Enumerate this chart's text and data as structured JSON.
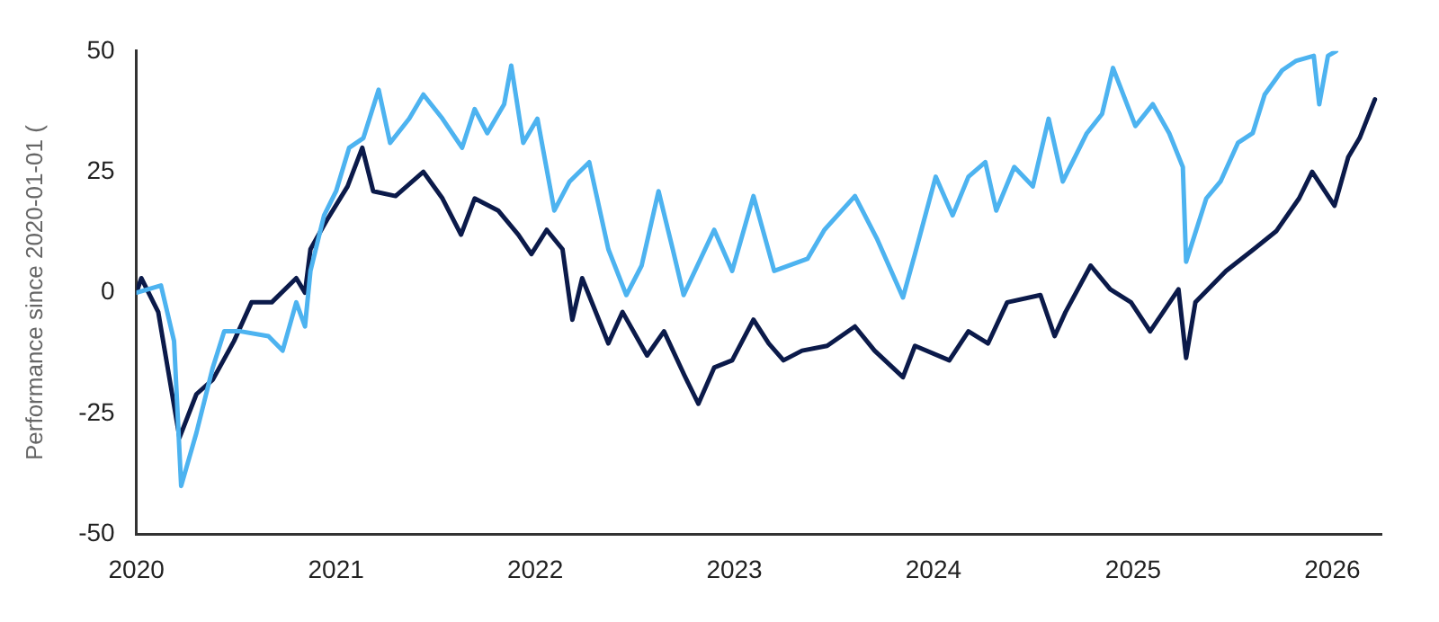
{
  "chart_data": {
    "type": "line",
    "ylabel": "Performance since 2020-01-01 (",
    "xlim": [
      "2020-01-01",
      "2026-04-01"
    ],
    "xticks": [
      "2020",
      "2021",
      "2022",
      "2023",
      "2024",
      "2025",
      "2026"
    ],
    "ylim": [
      -50,
      50
    ],
    "yticks": [
      -50,
      -25,
      0,
      25,
      50
    ],
    "grid": false,
    "legend": false,
    "marker": "none",
    "line_style": "solid",
    "series": [
      {
        "color": "#4db3f0",
        "x": [
          "2020-01-01",
          "2020-02-15",
          "2020-03-10",
          "2020-03-23",
          "2020-04-20",
          "2020-05-20",
          "2020-06-10",
          "2020-07-10",
          "2020-08-30",
          "2020-09-25",
          "2020-10-20",
          "2020-11-05",
          "2020-11-15",
          "2020-12-10",
          "2021-01-01",
          "2021-01-25",
          "2021-02-20",
          "2021-03-20",
          "2021-04-10",
          "2021-05-15",
          "2021-06-10",
          "2021-07-15",
          "2021-08-20",
          "2021-09-12",
          "2021-10-05",
          "2021-11-05",
          "2021-11-18",
          "2021-12-10",
          "2022-01-05",
          "2022-02-05",
          "2022-03-05",
          "2022-04-10",
          "2022-05-15",
          "2022-06-17",
          "2022-07-15",
          "2022-08-15",
          "2022-09-10",
          "2022-09-30",
          "2022-11-25",
          "2022-12-28",
          "2023-02-05",
          "2023-03-15",
          "2023-05-15",
          "2023-06-15",
          "2023-08-10",
          "2023-09-20",
          "2023-11-06",
          "2023-11-28",
          "2024-01-05",
          "2024-02-05",
          "2024-03-05",
          "2024-04-05",
          "2024-04-25",
          "2024-05-28",
          "2024-07-01",
          "2024-07-30",
          "2024-08-25",
          "2024-10-08",
          "2024-11-05",
          "2024-11-25",
          "2025-01-05",
          "2025-02-06",
          "2025-03-08",
          "2025-04-02",
          "2025-04-08",
          "2025-05-15",
          "2025-06-10",
          "2025-07-12",
          "2025-08-08",
          "2025-08-30",
          "2025-10-01",
          "2025-10-27",
          "2025-11-28",
          "2025-12-08",
          "2025-12-24",
          "2026-01-08"
        ],
        "values": [
          0,
          1.5,
          -10,
          -40,
          -29,
          -15.5,
          -8,
          -8,
          -9,
          -12,
          -2,
          -7,
          4.5,
          16,
          21,
          30,
          32,
          42,
          31,
          36,
          41,
          36,
          30,
          38,
          33,
          39,
          47,
          31,
          36,
          17,
          23,
          27,
          9,
          -0.5,
          5.6,
          21,
          9,
          -0.5,
          13,
          4.5,
          20,
          4.5,
          7,
          13,
          20,
          11,
          -1,
          8,
          24,
          16,
          24,
          27,
          17,
          26,
          22,
          36,
          23,
          33,
          37,
          46.5,
          34.5,
          39,
          33,
          26,
          6.4,
          19.5,
          23,
          31,
          33,
          41,
          46,
          48,
          49,
          39,
          49,
          50
        ]
      },
      {
        "color": "#0b1a4a",
        "x": [
          "2020-01-01",
          "2020-01-10",
          "2020-02-10",
          "2020-03-20",
          "2020-04-20",
          "2020-05-20",
          "2020-06-28",
          "2020-07-30",
          "2020-09-05",
          "2020-10-20",
          "2020-11-05",
          "2020-11-15",
          "2020-12-15",
          "2021-01-22",
          "2021-02-18",
          "2021-03-10",
          "2021-04-20",
          "2021-06-10",
          "2021-07-15",
          "2021-08-18",
          "2021-09-12",
          "2021-10-25",
          "2021-12-01",
          "2021-12-25",
          "2022-01-22",
          "2022-02-20",
          "2022-03-10",
          "2022-03-28",
          "2022-05-15",
          "2022-06-10",
          "2022-07-25",
          "2022-08-25",
          "2022-10-01",
          "2022-10-27",
          "2022-11-25",
          "2022-12-28",
          "2023-02-05",
          "2023-03-05",
          "2023-04-01",
          "2023-05-05",
          "2023-06-20",
          "2023-08-10",
          "2023-09-15",
          "2023-11-06",
          "2023-11-28",
          "2024-01-30",
          "2024-03-05",
          "2024-04-10",
          "2024-05-15",
          "2024-07-15",
          "2024-08-10",
          "2024-08-30",
          "2024-10-15",
          "2024-11-20",
          "2024-12-28",
          "2025-02-01",
          "2025-03-25",
          "2025-04-08",
          "2025-04-25",
          "2025-06-20",
          "2025-08-10",
          "2025-09-20",
          "2025-11-01",
          "2025-11-25",
          "2026-01-05",
          "2026-01-30",
          "2026-02-20",
          "2026-03-20"
        ],
        "values": [
          0,
          3,
          -4,
          -30,
          -21,
          -18,
          -10,
          -2,
          -2,
          3,
          0,
          9,
          15,
          22,
          30,
          21,
          20,
          25,
          19.5,
          12,
          19.5,
          17,
          12,
          8,
          13,
          9,
          -5.6,
          3,
          -10.5,
          -4,
          -13,
          -8,
          -17,
          -23,
          -15.5,
          -14,
          -5.6,
          -10.5,
          -14,
          -12,
          -11,
          -7,
          -12,
          -17.5,
          -11,
          -14,
          -8,
          -10.5,
          -2,
          -0.5,
          -9,
          -4,
          5.6,
          0.7,
          -2,
          -8,
          0.7,
          -13.5,
          -2,
          4.5,
          9,
          12.7,
          19.5,
          25,
          18,
          28,
          32,
          40
        ]
      }
    ]
  }
}
